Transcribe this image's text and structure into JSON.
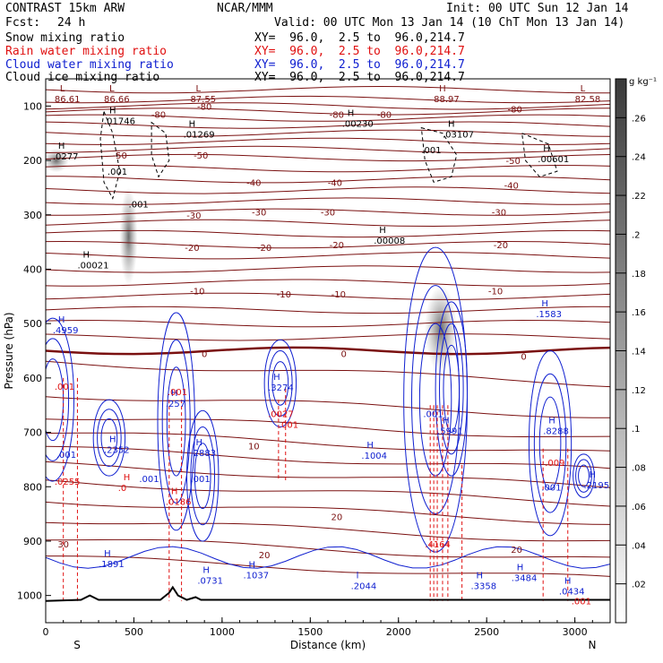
{
  "header": {
    "model": "CONTRAST 15km ARW",
    "org": "NCAR/MMM",
    "init": "Init: 00 UTC Sun 12 Jan 14",
    "fcst_label": "Fcst:",
    "fcst_value": "24 h",
    "valid": "Valid: 00 UTC Mon 13 Jan 14 (10 ChT Mon 13 Jan 14)",
    "fields": [
      {
        "name": "Snow mixing ratio",
        "xy": "XY=  96.0,  2.5 to  96.0,214.7"
      },
      {
        "name": "Rain water mixing ratio",
        "xy": "XY=  96.0,  2.5 to  96.0,214.7"
      },
      {
        "name": "Cloud water mixing ratio",
        "xy": "XY=  96.0,  2.5 to  96.0,214.7"
      },
      {
        "name": "Cloud ice mixing ratio",
        "xy": "XY=  96.0,  2.5 to  96.0,214.7"
      }
    ]
  },
  "colors": {
    "temp": "#7a1010",
    "freezing": "#7a1010",
    "rain": "#e01010",
    "cloudwater": "#1020d0",
    "cloudice": "#000000",
    "terrain": "#000000"
  },
  "chart_data": {
    "type": "contour",
    "xlabel": "Distance (km)",
    "ylabel": "Pressure (hPa)",
    "xlim": [
      0,
      3200
    ],
    "ylim": [
      1050,
      50
    ],
    "xticks": [
      "0",
      "500",
      "1000",
      "1500",
      "2000",
      "2500",
      "3000"
    ],
    "yticks": [
      "100",
      "200",
      "300",
      "400",
      "500",
      "600",
      "700",
      "800",
      "900",
      "1000"
    ],
    "x_end_labels": {
      "left": "S",
      "right": "N"
    },
    "colorbar": {
      "unit": "g kg⁻¹",
      "ticks": [
        ".02",
        ".04",
        ".06",
        ".08",
        ".1",
        ".12",
        ".14",
        ".16",
        ".18",
        ".2",
        ".22",
        ".24",
        ".26"
      ]
    },
    "temperature_labels": [
      {
        "x": 900,
        "p": 100,
        "text": "-80"
      },
      {
        "x": 1650,
        "p": 115,
        "text": "-80"
      },
      {
        "x": 1920,
        "p": 115,
        "text": "-80"
      },
      {
        "x": 640,
        "p": 115,
        "text": "-80"
      },
      {
        "x": 2660,
        "p": 105,
        "text": "-80"
      },
      {
        "x": 420,
        "p": 190,
        "text": "-50"
      },
      {
        "x": 880,
        "p": 190,
        "text": "-50"
      },
      {
        "x": 2650,
        "p": 200,
        "text": "-50"
      },
      {
        "x": 1180,
        "p": 240,
        "text": "-40"
      },
      {
        "x": 1640,
        "p": 240,
        "text": "-40"
      },
      {
        "x": 2640,
        "p": 245,
        "text": "-40"
      },
      {
        "x": 840,
        "p": 300,
        "text": "-30"
      },
      {
        "x": 1210,
        "p": 295,
        "text": "-30"
      },
      {
        "x": 1600,
        "p": 295,
        "text": "-30"
      },
      {
        "x": 2570,
        "p": 295,
        "text": "-30"
      },
      {
        "x": 830,
        "p": 360,
        "text": "-20"
      },
      {
        "x": 1240,
        "p": 360,
        "text": "-20"
      },
      {
        "x": 1650,
        "p": 355,
        "text": "-20"
      },
      {
        "x": 2580,
        "p": 355,
        "text": "-20"
      },
      {
        "x": 860,
        "p": 440,
        "text": "-10"
      },
      {
        "x": 1350,
        "p": 445,
        "text": "-10"
      },
      {
        "x": 1660,
        "p": 445,
        "text": "-10"
      },
      {
        "x": 2550,
        "p": 440,
        "text": "-10"
      },
      {
        "x": 900,
        "p": 555,
        "text": "0"
      },
      {
        "x": 1690,
        "p": 555,
        "text": "0"
      },
      {
        "x": 2710,
        "p": 560,
        "text": "0"
      },
      {
        "x": 1180,
        "p": 725,
        "text": "10"
      },
      {
        "x": 1650,
        "p": 855,
        "text": "20"
      },
      {
        "x": 1240,
        "p": 925,
        "text": "20"
      },
      {
        "x": 2670,
        "p": 915,
        "text": "20"
      },
      {
        "x": 100,
        "p": 905,
        "text": "30"
      }
    ],
    "hl_labels": [
      {
        "x": 50,
        "p": 80,
        "mark": "L",
        "value": "86.61",
        "color": "temp"
      },
      {
        "x": 330,
        "p": 80,
        "mark": "L",
        "value": "86.66",
        "color": "temp"
      },
      {
        "x": 820,
        "p": 80,
        "mark": "L",
        "value": "87.55",
        "color": "temp"
      },
      {
        "x": 2200,
        "p": 80,
        "mark": "H",
        "value": "88.97",
        "color": "temp"
      },
      {
        "x": 3000,
        "p": 80,
        "mark": "L",
        "value": "82.58",
        "color": "temp"
      },
      {
        "x": 330,
        "p": 120,
        "mark": "H",
        "value": ".01746",
        "color": "ice"
      },
      {
        "x": 780,
        "p": 145,
        "mark": "H",
        "value": ".01269",
        "color": "ice"
      },
      {
        "x": 1680,
        "p": 125,
        "mark": "H",
        "value": ".00230",
        "color": "ice"
      },
      {
        "x": 2250,
        "p": 145,
        "mark": "H",
        "value": ".03107",
        "color": "ice"
      },
      {
        "x": 40,
        "p": 185,
        "mark": "H",
        "value": ".0277",
        "color": "ice"
      },
      {
        "x": 2790,
        "p": 190,
        "mark": "H",
        "value": ".00601",
        "color": "ice"
      },
      {
        "x": 1860,
        "p": 340,
        "mark": "H",
        "value": ".00008",
        "color": "ice"
      },
      {
        "x": 180,
        "p": 385,
        "mark": "H",
        "value": ".00021",
        "color": "ice"
      },
      {
        "x": 2780,
        "p": 475,
        "mark": "H",
        "value": ".1583",
        "color": "cloudwater"
      },
      {
        "x": 40,
        "p": 505,
        "mark": "H",
        "value": ".4959",
        "color": "cloudwater"
      },
      {
        "x": 1260,
        "p": 610,
        "mark": "H",
        "value": ".3274",
        "color": "cloudwater"
      },
      {
        "x": 680,
        "p": 640,
        "mark": "H",
        "value": ".257",
        "color": "cloudwater"
      },
      {
        "x": 2220,
        "p": 690,
        "mark": "H",
        "value": ".5991",
        "color": "cloudwater"
      },
      {
        "x": 2820,
        "p": 690,
        "mark": "H",
        "value": ".8288",
        "color": "cloudwater"
      },
      {
        "x": 330,
        "p": 725,
        "mark": "H",
        "value": ".2352",
        "color": "cloudwater"
      },
      {
        "x": 820,
        "p": 730,
        "mark": "H",
        "value": ".2883",
        "color": "cloudwater"
      },
      {
        "x": 1790,
        "p": 735,
        "mark": "H",
        "value": ".1004",
        "color": "cloudwater"
      },
      {
        "x": 3050,
        "p": 790,
        "mark": "H",
        "value": ".2195",
        "color": "cloudwater"
      },
      {
        "x": 300,
        "p": 935,
        "mark": "H",
        "value": ".1891",
        "color": "cloudwater"
      },
      {
        "x": 860,
        "p": 965,
        "mark": "H",
        "value": ".0731",
        "color": "cloudwater"
      },
      {
        "x": 1120,
        "p": 955,
        "mark": "H",
        "value": ".1037",
        "color": "cloudwater"
      },
      {
        "x": 1730,
        "p": 975,
        "mark": "l",
        "value": ".2044",
        "color": "cloudwater"
      },
      {
        "x": 2410,
        "p": 975,
        "mark": "H",
        "value": ".3358",
        "color": "cloudwater"
      },
      {
        "x": 2640,
        "p": 960,
        "mark": "H",
        "value": ".3484",
        "color": "cloudwater"
      },
      {
        "x": 2910,
        "p": 985,
        "mark": "H",
        "value": ".0434",
        "color": "cloudwater"
      },
      {
        "x": 50,
        "p": 615,
        "mark": "",
        "value": ".001",
        "color": "rain"
      },
      {
        "x": 690,
        "p": 625,
        "mark": "",
        "value": ".001",
        "color": "rain"
      },
      {
        "x": 1260,
        "p": 665,
        "mark": "",
        "value": ".0027",
        "color": "rain"
      },
      {
        "x": 1320,
        "p": 685,
        "mark": "",
        "value": ".001",
        "color": "rain"
      },
      {
        "x": 50,
        "p": 790,
        "mark": "",
        "value": ".0255",
        "color": "rain"
      },
      {
        "x": 410,
        "p": 795,
        "mark": "H",
        "value": ".0",
        "color": "rain"
      },
      {
        "x": 680,
        "p": 820,
        "mark": "H",
        "value": ".0186",
        "color": "rain"
      },
      {
        "x": 2830,
        "p": 755,
        "mark": "",
        "value": ".009",
        "color": "rain"
      },
      {
        "x": 2150,
        "p": 905,
        "mark": "",
        "value": ".4164",
        "color": "rain"
      },
      {
        "x": 2980,
        "p": 1010,
        "mark": "",
        "value": ".001",
        "color": "rain"
      },
      {
        "x": 2140,
        "p": 665,
        "mark": "",
        "value": ".001",
        "color": "cloudwater"
      },
      {
        "x": 60,
        "p": 740,
        "mark": "",
        "value": ".001",
        "color": "cloudwater"
      },
      {
        "x": 530,
        "p": 785,
        "mark": "",
        "value": ".001",
        "color": "cloudwater"
      },
      {
        "x": 820,
        "p": 785,
        "mark": "",
        "value": ".001",
        "color": "cloudwater"
      },
      {
        "x": 2810,
        "p": 800,
        "mark": "",
        "value": ".001",
        "color": "cloudwater"
      },
      {
        "x": 2130,
        "p": 180,
        "mark": "",
        "value": ".001",
        "color": "ice"
      },
      {
        "x": 350,
        "p": 220,
        "mark": "",
        "value": ".001",
        "color": "ice"
      },
      {
        "x": 470,
        "p": 280,
        "mark": "",
        "value": ".001",
        "color": "ice"
      }
    ]
  }
}
